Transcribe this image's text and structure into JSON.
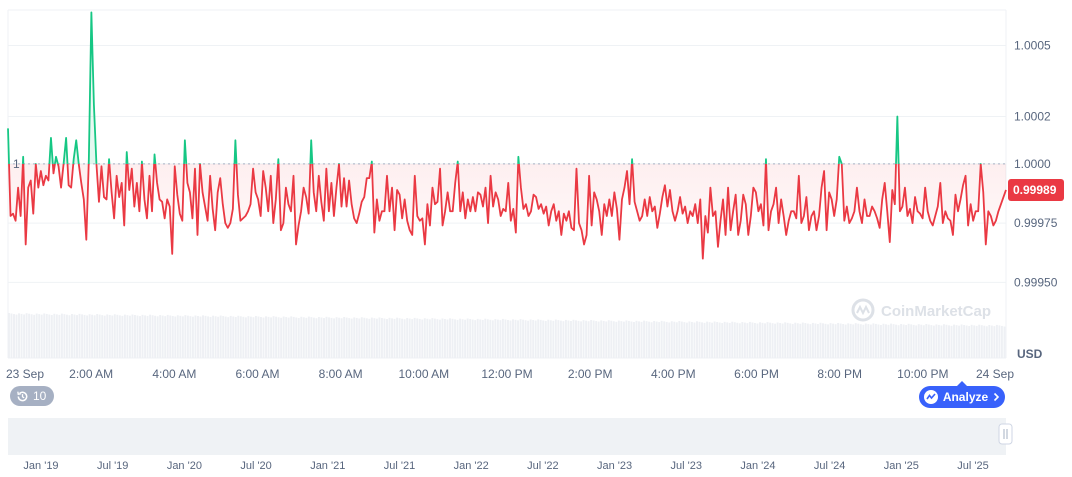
{
  "chart_data": {
    "type": "line",
    "currency": "USD",
    "y_ticks": [
      "1.0005",
      "1.0002",
      "1.0000",
      "0.99975",
      "0.99950"
    ],
    "ylim": [
      0.9994,
      1.00065
    ],
    "reference_line": {
      "value": 1.0,
      "label": "1"
    },
    "current_price": {
      "value": 0.99989,
      "label": "0.99989"
    },
    "x_ticks": [
      "23 Sep",
      "2:00 AM",
      "4:00 AM",
      "6:00 AM",
      "8:00 AM",
      "10:00 AM",
      "12:00 PM",
      "2:00 PM",
      "4:00 PM",
      "6:00 PM",
      "8:00 PM",
      "10:00 PM",
      "24 Sep"
    ],
    "navigator_ticks": [
      "Jan '19",
      "Jul '19",
      "Jan '20",
      "Jul '20",
      "Jan '21",
      "Jul '21",
      "Jan '22",
      "Jul '22",
      "Jan '23",
      "Jul '23",
      "Jan '24",
      "Jul '24",
      "Jan '25",
      "Jul '25"
    ],
    "series": [
      {
        "values": [
          1.00015,
          0.99978,
          0.99979,
          0.99976,
          0.9999,
          0.99978,
          1.00003,
          0.99966,
          0.9999,
          0.99993,
          0.99979,
          1.0,
          0.9999,
          0.99997,
          0.99991,
          0.99995,
          0.99993,
          1.00011,
          0.99996,
          1.00003,
          0.99999,
          0.9999,
          1.0,
          1.00011,
          0.99991,
          0.9999,
          1.00002,
          1.0001,
          1.0,
          0.99992,
          0.99985,
          0.99968,
          1.00002,
          1.00064,
          1.00025,
          1.0,
          0.99984,
          0.99999,
          0.99986,
          0.99985,
          1.00002,
          0.99988,
          0.99977,
          0.99995,
          0.99986,
          0.99992,
          0.99974,
          1.00005,
          0.99989,
          0.99998,
          0.99982,
          0.99992,
          0.9998,
          1.00001,
          0.99985,
          0.99977,
          0.99995,
          0.9998,
          1.00004,
          0.99992,
          0.99985,
          0.99984,
          0.99977,
          0.99985,
          0.99982,
          0.99962,
          0.99999,
          0.99987,
          0.99979,
          0.99976,
          1.0001,
          0.99992,
          0.99988,
          0.99977,
          0.99998,
          0.9997,
          1.0,
          0.99988,
          0.99982,
          0.99976,
          0.99995,
          0.99981,
          0.99972,
          0.99988,
          0.99994,
          0.99983,
          0.99975,
          0.99973,
          0.99975,
          0.99981,
          1.0001,
          0.99987,
          0.99976,
          0.99977,
          0.99978,
          0.9998,
          0.99983,
          0.99998,
          0.99988,
          0.99985,
          0.99978,
          0.99997,
          0.9999,
          0.9998,
          0.99995,
          0.99975,
          0.99985,
          1.00002,
          0.99972,
          0.99975,
          0.9999,
          0.99983,
          0.9998,
          0.99995,
          0.99966,
          0.99974,
          0.9998,
          0.9999,
          0.99986,
          0.99979,
          1.0001,
          0.99988,
          0.9998,
          0.99995,
          0.99984,
          0.99976,
          0.99998,
          0.9998,
          0.99992,
          0.99978,
          0.9999,
          1.0,
          0.99982,
          0.99994,
          0.99982,
          0.99993,
          0.99983,
          0.99977,
          0.99975,
          0.99979,
          0.99984,
          0.99986,
          0.99994,
          0.99994,
          1.00001,
          0.99971,
          0.99985,
          0.99976,
          0.9998,
          0.9998,
          0.99995,
          0.9998,
          0.9999,
          0.99972,
          0.99989,
          0.99987,
          0.99977,
          0.99985,
          0.99976,
          0.99972,
          0.9997,
          0.99995,
          0.99978,
          0.99976,
          0.99977,
          0.99966,
          0.99983,
          0.99974,
          0.9999,
          0.99983,
          0.99984,
          0.99998,
          0.99974,
          0.9998,
          0.99988,
          0.9998,
          0.9998,
          0.99992,
          1.00001,
          0.9998,
          0.99988,
          0.99977,
          0.99985,
          0.9998,
          0.99986,
          0.9998,
          0.99988,
          0.99987,
          0.99982,
          0.9999,
          0.99975,
          0.99995,
          0.99982,
          0.99988,
          0.99985,
          0.99978,
          0.99981,
          0.9998,
          0.99992,
          0.99976,
          0.99981,
          0.99971,
          1.00003,
          0.9999,
          0.99981,
          0.99983,
          0.99978,
          0.9998,
          0.99987,
          0.99986,
          0.99981,
          0.99983,
          0.99979,
          0.99982,
          0.99974,
          0.9998,
          0.99983,
          0.99976,
          0.9998,
          0.9997,
          0.99979,
          0.99976,
          0.9998,
          0.99973,
          0.99972,
          0.99998,
          0.99975,
          0.99972,
          0.99966,
          0.9997,
          0.99995,
          0.99974,
          0.99988,
          0.99985,
          0.9998,
          0.9997,
          0.99983,
          0.99978,
          0.99985,
          0.99978,
          0.99988,
          0.99981,
          0.99968,
          0.99985,
          0.9999,
          0.99997,
          0.99983,
          1.00002,
          0.99984,
          0.9998,
          0.99976,
          0.99978,
          0.99985,
          0.99978,
          0.99986,
          0.9998,
          0.99982,
          0.99973,
          0.99979,
          0.99986,
          0.99991,
          0.99982,
          0.99989,
          0.9998,
          0.99976,
          0.9998,
          0.99986,
          0.99979,
          0.99982,
          0.99975,
          0.9998,
          0.99978,
          0.99983,
          0.99975,
          0.99985,
          0.9996,
          0.99978,
          0.99971,
          0.9999,
          0.99978,
          0.9998,
          0.99965,
          0.99976,
          0.99985,
          0.9997,
          0.9999,
          0.99972,
          0.9998,
          0.99987,
          0.9997,
          0.99976,
          0.99987,
          0.99983,
          0.9997,
          0.99978,
          0.9999,
          0.99988,
          0.9998,
          0.99983,
          0.99974,
          1.00002,
          0.99972,
          0.9998,
          0.99983,
          0.9999,
          0.99975,
          0.99985,
          0.99978,
          0.9997,
          0.99976,
          0.9998,
          0.9998,
          0.99977,
          0.99995,
          0.99975,
          0.99978,
          0.99986,
          0.99972,
          0.99978,
          0.9998,
          0.99972,
          0.99978,
          0.9999,
          0.99997,
          0.99972,
          0.99988,
          0.99985,
          0.99978,
          0.99985,
          1.00003,
          1.0,
          0.99976,
          0.99982,
          0.99975,
          0.99977,
          0.9998,
          0.9999,
          0.9998,
          0.99975,
          0.99985,
          0.99978,
          0.99978,
          0.99982,
          0.9998,
          0.99977,
          0.99973,
          0.99985,
          0.99992,
          0.9998,
          0.99967,
          0.99989,
          0.99983,
          1.0002,
          0.9998,
          0.99982,
          0.9999,
          0.99978,
          0.99981,
          0.99975,
          0.99986,
          0.9998,
          0.99979,
          0.99977,
          0.9999,
          0.9998,
          0.99976,
          0.99974,
          0.99978,
          0.99982,
          0.99992,
          0.99975,
          0.9998,
          0.99977,
          0.99976,
          0.9997,
          0.99987,
          0.9998,
          0.99985,
          0.99991,
          0.99995,
          0.99974,
          0.99983,
          0.99976,
          0.9998,
          0.9998,
          1.0,
          0.99988,
          0.99966,
          0.9998,
          0.99978,
          0.99974,
          0.99976,
          0.9998,
          0.99983,
          0.99986,
          0.99989
        ]
      }
    ],
    "colors": {
      "up": "#16c784",
      "down": "#ea3943",
      "accent": "#3861fb",
      "tag": "#ea3943"
    },
    "grid": true,
    "watermark": "CoinMarketCap"
  },
  "controls": {
    "history_count": "10",
    "analyze_label": "Analyze"
  },
  "icons": {
    "history": "history-icon",
    "analyze": "analyze-icon",
    "chevron": "chevron-right-icon",
    "drag": "drag-handle-icon"
  }
}
